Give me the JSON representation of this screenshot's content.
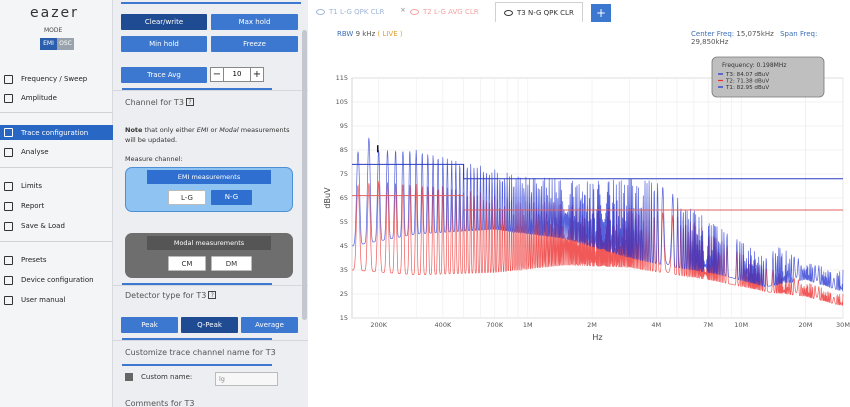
{
  "sidebar": {
    "logo": "eazer",
    "mode_label": "MODE",
    "mode_options": [
      "EMI",
      "OSC"
    ],
    "items": [
      {
        "label": "Frequency / Sweep",
        "icon": "sweep-icon"
      },
      {
        "label": "Amplitude",
        "icon": "amplitude-icon"
      },
      {
        "label": "Trace configuration",
        "icon": "trace-icon"
      },
      {
        "label": "Analyse",
        "icon": "analyse-icon"
      },
      {
        "label": "Limits",
        "icon": "limits-icon"
      },
      {
        "label": "Report",
        "icon": "report-icon"
      },
      {
        "label": "Save & Load",
        "icon": "save-icon"
      },
      {
        "label": "Presets",
        "icon": "presets-icon"
      },
      {
        "label": "Device configuration",
        "icon": "device-icon"
      },
      {
        "label": "User manual",
        "icon": "help-icon"
      }
    ],
    "active_item": "Trace configuration"
  },
  "panel": {
    "buttons": {
      "clear_write": "Clear/write",
      "max_hold": "Max hold",
      "min_hold": "Min hold",
      "freeze": "Freeze",
      "trace_avg": "Trace Avg"
    },
    "avg_value": "10",
    "stepper_minus": "−",
    "stepper_plus": "+",
    "channel_title": "Channel for T3",
    "note_bold": "Note",
    "note_1": " that only either ",
    "note_emi": "EMI",
    "note_2": " or ",
    "note_modal": "Modal",
    "note_3": " measurements will be updated.",
    "measure_channel": "Measure channel:",
    "emi_measurements": "EMI measurements",
    "emi_options": [
      "L-G",
      "N-G"
    ],
    "modal_measurements": "Modal measurements",
    "modal_options": [
      "CM",
      "DM"
    ],
    "detector_title": "Detector type for T3",
    "detector_options": [
      "Peak",
      "Q-Peak",
      "Average"
    ],
    "customize_title": "Customize trace channel name for T3",
    "custom_name_label": "Custom name:",
    "custom_name_value": "lg",
    "comments_title": "Comments for T3",
    "help_glyph": "?"
  },
  "tabs": [
    {
      "label": "T1 L-G QPK CLR",
      "color": "#9fb6d8"
    },
    {
      "label": "T2 L-G AVG CLR",
      "color": "#f2a3a3"
    },
    {
      "label": "T3 N-G QPK CLR",
      "color": "#333333"
    }
  ],
  "tab_add": "+",
  "tab_close": "×",
  "info": {
    "rbw_label": "RBW",
    "rbw_value": "9 kHz",
    "rbw_note": "( LIVE )",
    "center_label": "Center Freq:",
    "center_value": "15,075kHz",
    "span_label": "Span Freq:",
    "span_value": "29,850kHz"
  },
  "legend": {
    "title": "Frequency: 0.198MHz",
    "entries": [
      {
        "text": "T3: 84.07 dBuV",
        "color": "#1f2fd0"
      },
      {
        "text": "T2: 71.38 dBuV",
        "color": "#e83030"
      },
      {
        "text": "T1: 82.95 dBuV",
        "color": "#1f2fd0"
      }
    ]
  },
  "chart_data": {
    "type": "line",
    "xscale": "log",
    "xlim": [
      150000,
      30000000
    ],
    "ylim": [
      15,
      115
    ],
    "xlabel": "Hz",
    "ylabel": "dBuV",
    "yticks": [
      15,
      25,
      35,
      45,
      55,
      65,
      75,
      85,
      95,
      105,
      115
    ],
    "xticks": [
      {
        "value": 200000,
        "label": "200K"
      },
      {
        "value": 400000,
        "label": "400K"
      },
      {
        "value": 700000,
        "label": "700K"
      },
      {
        "value": 1000000,
        "label": "1M"
      },
      {
        "value": 2000000,
        "label": "2M"
      },
      {
        "value": 4000000,
        "label": "4M"
      },
      {
        "value": 7000000,
        "label": "7M"
      },
      {
        "value": 10000000,
        "label": "10M"
      },
      {
        "value": 20000000,
        "label": "20M"
      },
      {
        "value": 30000000,
        "label": "30M"
      }
    ],
    "grid": true,
    "limit_lines": [
      {
        "color": "#2a3cc0",
        "points": [
          [
            150000,
            79
          ],
          [
            500000,
            79
          ],
          [
            500000,
            73
          ],
          [
            30000000,
            73
          ]
        ]
      },
      {
        "color": "#e06060",
        "points": [
          [
            150000,
            66
          ],
          [
            500000,
            66
          ],
          [
            500000,
            60
          ],
          [
            30000000,
            60
          ]
        ]
      }
    ],
    "series": [
      {
        "color": "#1f2fd0",
        "peak_envelope": [
          [
            150000,
            75
          ],
          [
            170000,
            93
          ],
          [
            200000,
            85
          ],
          [
            300000,
            85
          ],
          [
            500000,
            80
          ],
          [
            1000000,
            74
          ],
          [
            2000000,
            72
          ],
          [
            3000000,
            73
          ],
          [
            4000000,
            72
          ],
          [
            6000000,
            60
          ],
          [
            10000000,
            47
          ],
          [
            13000000,
            40
          ],
          [
            15000000,
            45
          ],
          [
            20000000,
            38
          ],
          [
            30000000,
            35
          ]
        ],
        "floor_envelope": [
          [
            150000,
            45
          ],
          [
            300000,
            50
          ],
          [
            700000,
            52
          ],
          [
            1500000,
            48
          ],
          [
            3000000,
            40
          ],
          [
            5000000,
            36
          ],
          [
            8000000,
            33
          ],
          [
            13000000,
            28
          ],
          [
            20000000,
            31
          ],
          [
            30000000,
            26
          ]
        ],
        "ripple_period_hz": 20000
      },
      {
        "color": "#ee3030",
        "peak_envelope": [
          [
            150000,
            70
          ],
          [
            200000,
            72
          ],
          [
            400000,
            70
          ],
          [
            1000000,
            64
          ],
          [
            2000000,
            62
          ],
          [
            4000000,
            60
          ],
          [
            6000000,
            55
          ],
          [
            10000000,
            42
          ],
          [
            13000000,
            36
          ],
          [
            20000000,
            30
          ],
          [
            30000000,
            25
          ]
        ],
        "floor_envelope": [
          [
            150000,
            35
          ],
          [
            300000,
            33
          ],
          [
            700000,
            34
          ],
          [
            1500000,
            37
          ],
          [
            3000000,
            36
          ],
          [
            5000000,
            33
          ],
          [
            8000000,
            30
          ],
          [
            13000000,
            26
          ],
          [
            20000000,
            24
          ],
          [
            30000000,
            20
          ]
        ],
        "ripple_period_hz": 20000
      }
    ]
  }
}
